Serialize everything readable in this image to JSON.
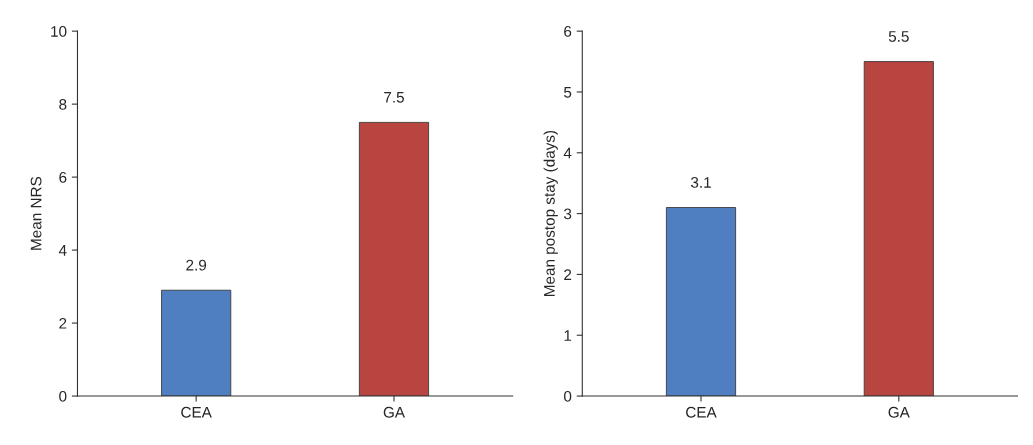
{
  "chart_data": [
    {
      "type": "bar",
      "ylabel": "Mean NRS",
      "categories": [
        "CEA",
        "GA"
      ],
      "values": [
        2.9,
        7.5
      ],
      "colors": [
        "#4f7fc0",
        "#b8453f"
      ],
      "ylim": [
        0,
        10
      ],
      "yticks": [
        0,
        2,
        4,
        6,
        8,
        10
      ],
      "data_labels": true,
      "grid": false,
      "legend": false
    },
    {
      "type": "bar",
      "ylabel": "Mean postop stay (days)",
      "categories": [
        "CEA",
        "GA"
      ],
      "values": [
        3.1,
        5.5
      ],
      "colors": [
        "#4f7fc0",
        "#b8453f"
      ],
      "ylim": [
        0,
        6
      ],
      "yticks": [
        0,
        1,
        2,
        3,
        4,
        5,
        6
      ],
      "data_labels": true,
      "grid": false,
      "legend": false
    }
  ]
}
